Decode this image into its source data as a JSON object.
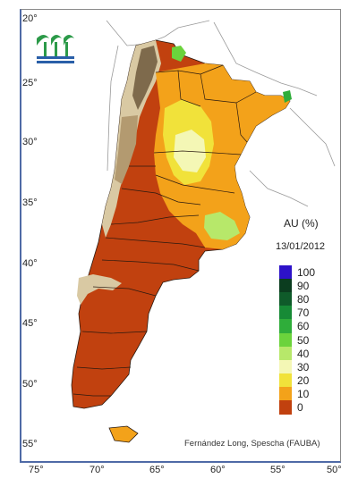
{
  "legend": {
    "title": "AU (%)",
    "date": "13/01/2012",
    "classes": [
      {
        "label": "100",
        "color": "#2d12c9"
      },
      {
        "label": "90",
        "color": "#0b3d1f"
      },
      {
        "label": "80",
        "color": "#0f5b2a"
      },
      {
        "label": "70",
        "color": "#178a36"
      },
      {
        "label": "60",
        "color": "#2fad3a"
      },
      {
        "label": "50",
        "color": "#6bd33c"
      },
      {
        "label": "40",
        "color": "#b7e86a"
      },
      {
        "label": "30",
        "color": "#f4f7b5"
      },
      {
        "label": "20",
        "color": "#f1e23a"
      },
      {
        "label": "10",
        "color": "#f3a21a"
      },
      {
        "label": "0",
        "color": "#c1410f"
      }
    ]
  },
  "axes": {
    "latitude_labels": [
      "20°",
      "25°",
      "30°",
      "35°",
      "40°",
      "45°",
      "50°",
      "55°"
    ],
    "longitude_labels": [
      "75°",
      "70°",
      "65°",
      "60°",
      "55°",
      "50°"
    ]
  },
  "credit": "Fernández Long, Spescha (FAUBA)",
  "colors": {
    "terrain_light": "#d9c9a3",
    "terrain_mid": "#b39a70",
    "terrain_dark": "#7e6a4c",
    "frame_accent": "#4f6aa6",
    "logo_green": "#2c9a49",
    "logo_blue": "#2a5fa8"
  }
}
